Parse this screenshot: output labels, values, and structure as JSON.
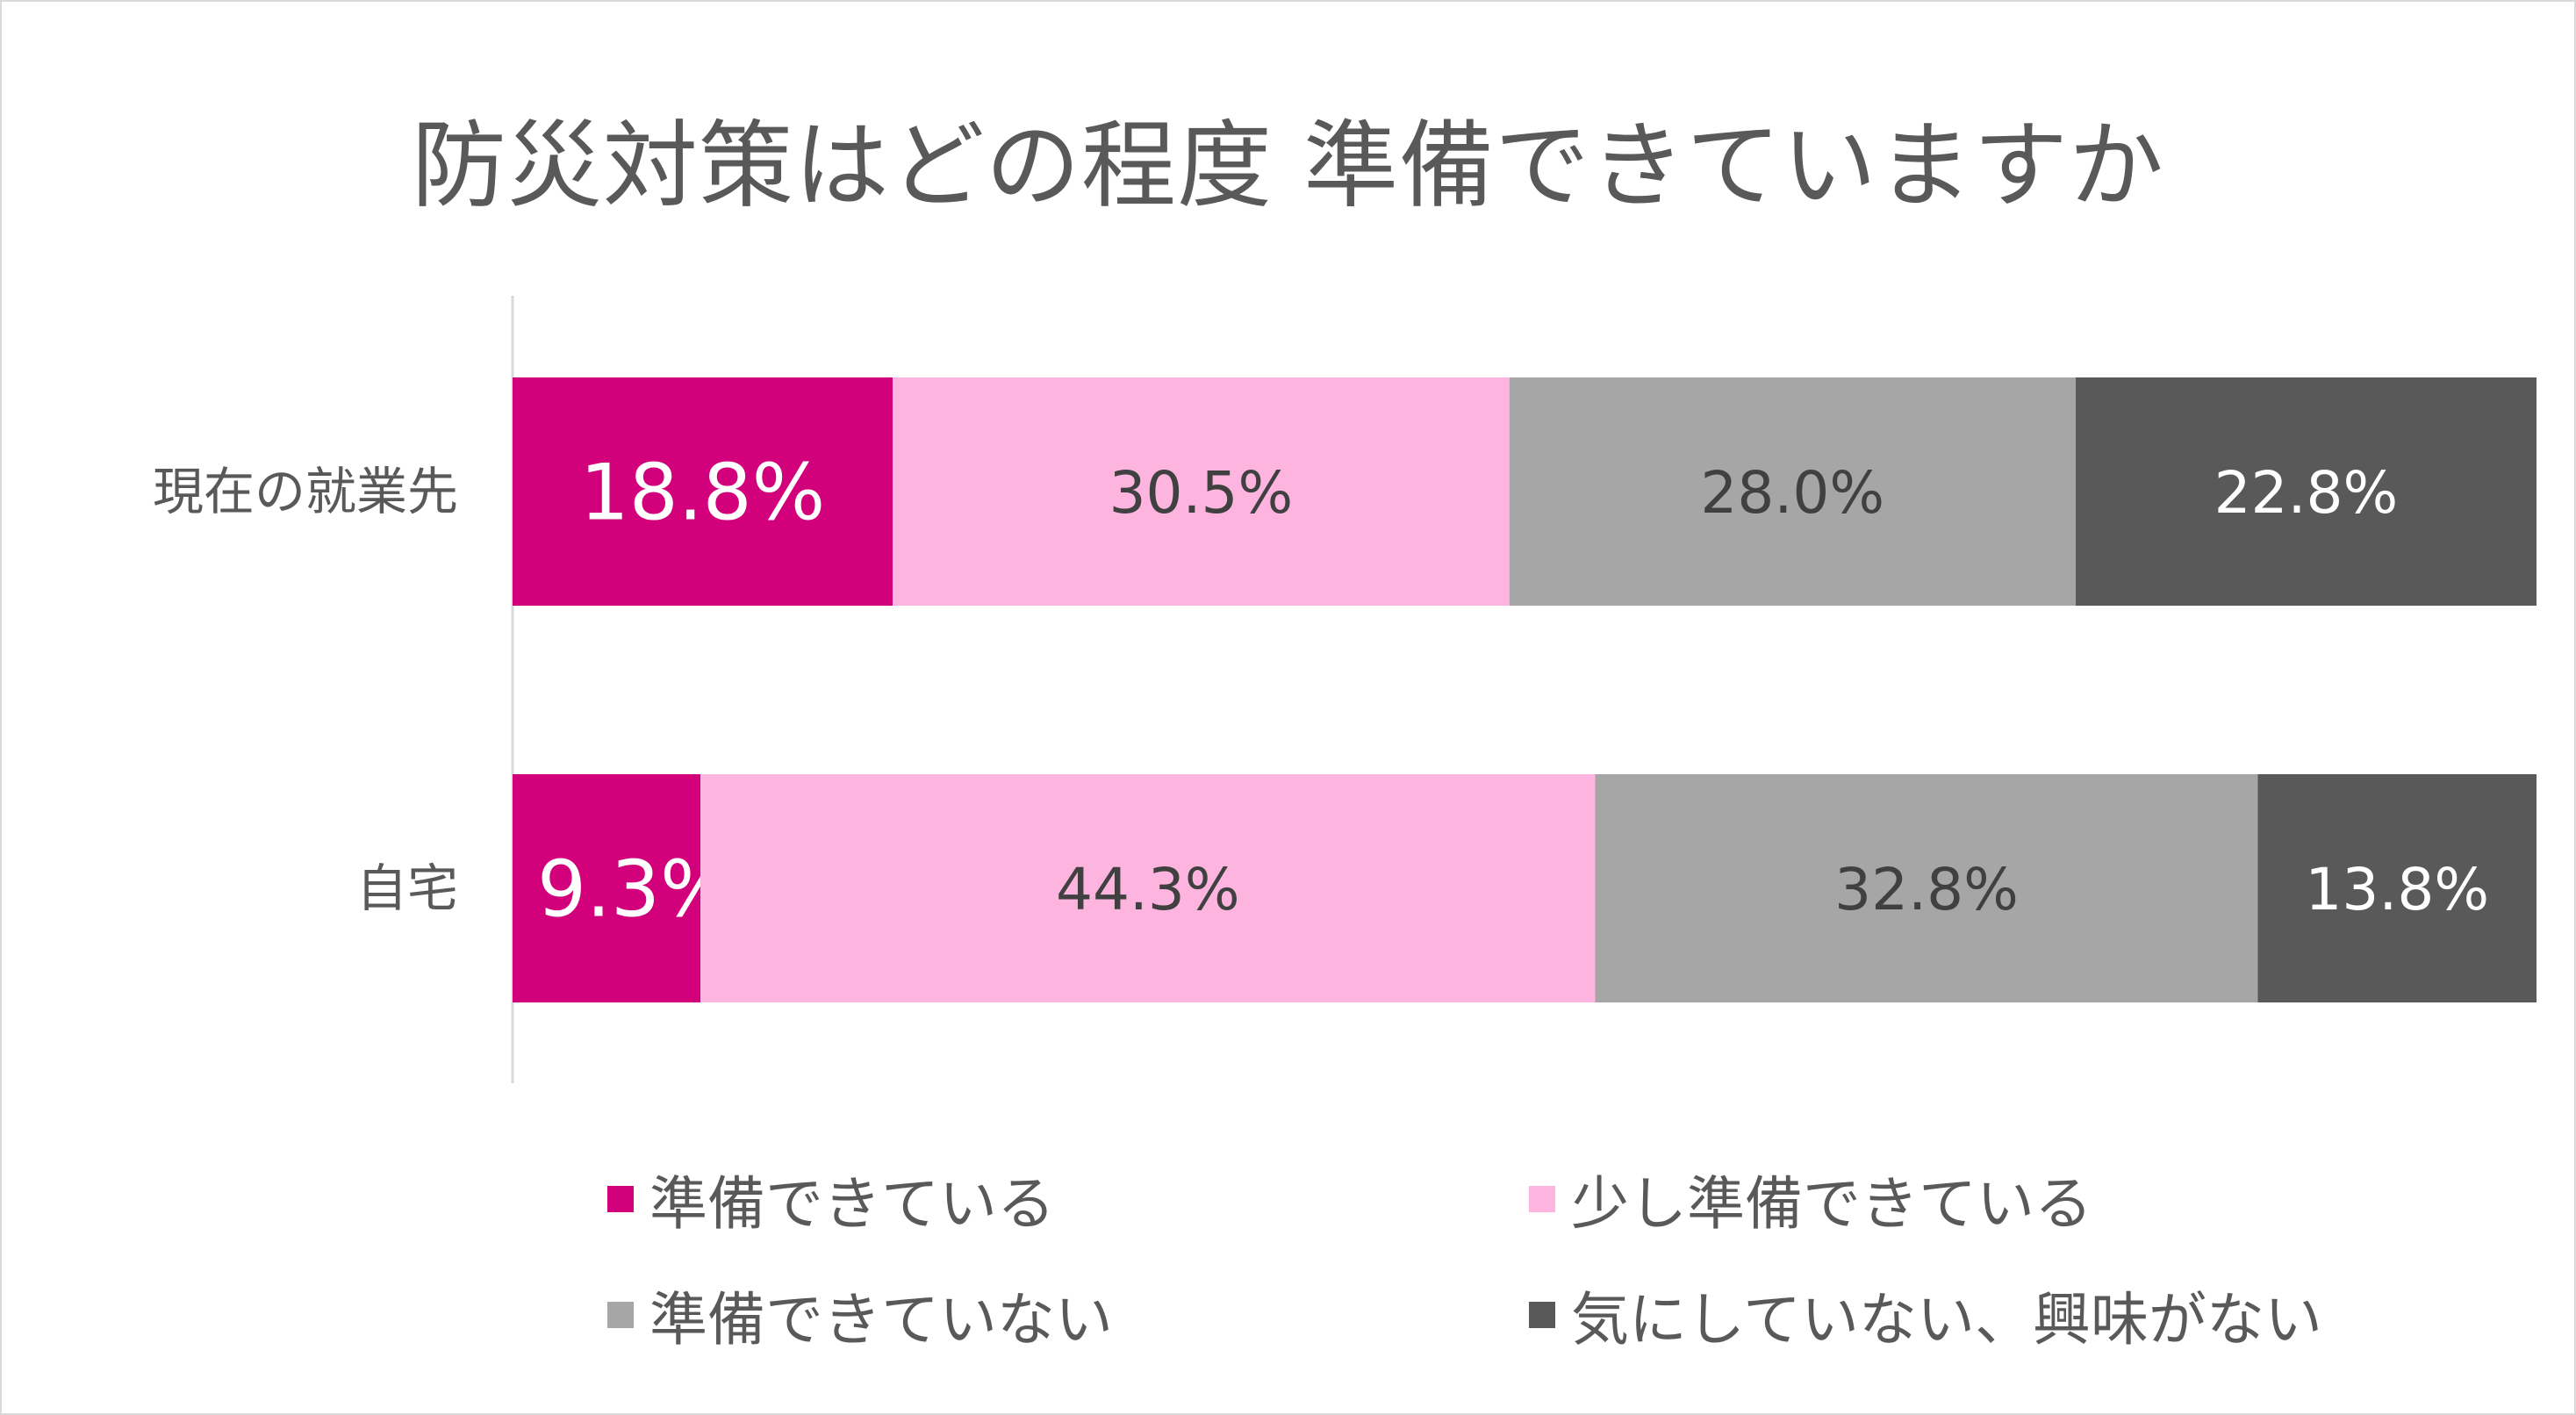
{
  "chart_data": {
    "type": "bar",
    "orientation": "horizontal",
    "stacked": true,
    "percent": true,
    "title": "防災対策はどの程度 準備できていますか",
    "categories": [
      "現在の就業先",
      "自宅"
    ],
    "series": [
      {
        "name": "準備できている",
        "color": "#d3007b",
        "label_color": "#ffffff",
        "values": [
          18.8,
          9.3
        ],
        "labels": [
          "18.8%",
          "9.3%"
        ]
      },
      {
        "name": "少し準備できている",
        "color": "#fdb5e0",
        "label_color": "#404040",
        "values": [
          30.5,
          44.3
        ],
        "labels": [
          "30.5%",
          "44.3%"
        ]
      },
      {
        "name": "準備できていない",
        "color": "#a6a6a6",
        "label_color": "#404040",
        "values": [
          28.0,
          32.8
        ],
        "labels": [
          "28.0%",
          "32.8%"
        ]
      },
      {
        "name": "気にしていない、興味がない",
        "color": "#595959",
        "label_color": "#ffffff",
        "values": [
          22.8,
          13.8
        ],
        "labels": [
          "22.8%",
          "13.8%"
        ]
      }
    ],
    "xlim": [
      0,
      100
    ],
    "grid": false,
    "legend_position": "bottom"
  }
}
